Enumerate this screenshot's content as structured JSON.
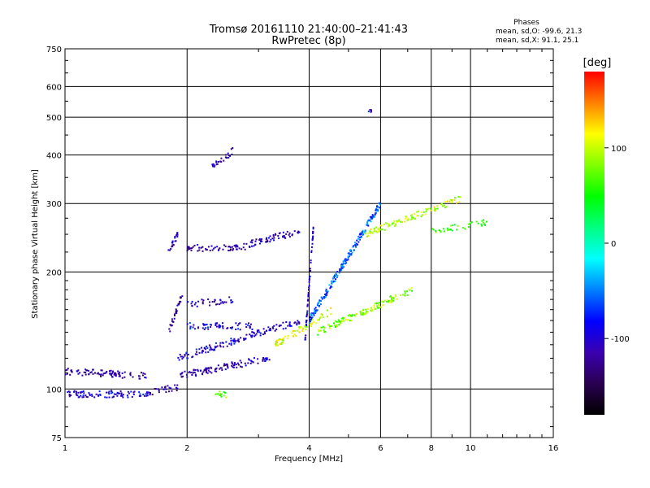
{
  "header": {
    "title_line1": "Tromsø 20161110 21:40:00–21:41:43",
    "title_line2": "RwPretec (8p)"
  },
  "legend_block": {
    "heading": "Phases",
    "line_o": "mean, sd,O: -99.6, 21.3",
    "line_x": "mean, sd,X:  91.1, 25.1"
  },
  "colorbar": {
    "unit": "[deg]",
    "tick_labels": [
      "100",
      "0",
      "-100"
    ],
    "tick_values": [
      100,
      0,
      -100
    ],
    "range": [
      -180,
      180
    ],
    "colormap": [
      "#000000",
      "#2a0050",
      "#3a00b0",
      "#0000ff",
      "#0080ff",
      "#00ffff",
      "#00ff80",
      "#00ff00",
      "#80ff00",
      "#ffff00",
      "#ff8000",
      "#ff0000"
    ]
  },
  "chart_data": {
    "type": "scatter",
    "title": "Tromsø 20161110 21:40:00–21:41:43",
    "subtitle": "RwPretec (8p)",
    "xlabel": "Frequency [MHz]",
    "ylabel": "Stationary phase Virtual Height [km]",
    "xscale": "log",
    "yscale": "log",
    "xlim": [
      1,
      16
    ],
    "ylim": [
      75,
      750
    ],
    "xticks": [
      1,
      2,
      4,
      6,
      8,
      10,
      16
    ],
    "xtick_labels": [
      "1",
      "2",
      "4",
      "6",
      "8",
      "10",
      "16"
    ],
    "yticks": [
      75,
      100,
      200,
      300,
      400,
      500,
      600,
      750
    ],
    "ytick_labels": [
      "75",
      "100",
      "200",
      "300",
      "400",
      "500",
      "600",
      "750"
    ],
    "grid": true,
    "color_value": "Phase [deg]",
    "traces": [
      {
        "x_range": [
          1.0,
          1.6
        ],
        "h_start": 97,
        "h_end": 97,
        "phase": -100,
        "n": 90
      },
      {
        "x_range": [
          1.6,
          1.9
        ],
        "h_start": 98,
        "h_end": 101,
        "phase": -120,
        "n": 30
      },
      {
        "x_range": [
          1.0,
          1.6
        ],
        "h_start": 111,
        "h_end": 108,
        "phase": -120,
        "n": 90
      },
      {
        "x_range": [
          1.9,
          3.2
        ],
        "h_start": 108,
        "h_end": 120,
        "phase": -110,
        "n": 110
      },
      {
        "x_range": [
          1.9,
          3.8
        ],
        "h_start": 120,
        "h_end": 150,
        "phase": -100,
        "n": 140
      },
      {
        "x_range": [
          3.3,
          4.6
        ],
        "h_start": 130,
        "h_end": 160,
        "phase": 100,
        "n": 70
      },
      {
        "x_range": [
          4.2,
          7.2
        ],
        "h_start": 140,
        "h_end": 180,
        "phase": 80,
        "n": 130
      },
      {
        "x_range": [
          1.8,
          1.9
        ],
        "h_start": 225,
        "h_end": 250,
        "phase": -110,
        "n": 20
      },
      {
        "x_range": [
          1.8,
          1.95
        ],
        "h_start": 140,
        "h_end": 175,
        "phase": -120,
        "n": 30
      },
      {
        "x_range": [
          2.0,
          2.8
        ],
        "h_start": 230,
        "h_end": 232,
        "phase": -120,
        "n": 60
      },
      {
        "x_range": [
          2.8,
          3.8
        ],
        "h_start": 235,
        "h_end": 255,
        "phase": -110,
        "n": 60
      },
      {
        "x_range": [
          2.0,
          2.9
        ],
        "h_start": 145,
        "h_end": 145,
        "phase": -90,
        "n": 60
      },
      {
        "x_range": [
          2.0,
          2.6
        ],
        "h_start": 165,
        "h_end": 170,
        "phase": -110,
        "n": 35
      },
      {
        "x_range": [
          3.9,
          4.1
        ],
        "h_start": 130,
        "h_end": 260,
        "phase": -100,
        "n": 60
      },
      {
        "x_range": [
          4.0,
          6.0
        ],
        "h_start": 150,
        "h_end": 300,
        "phase": -60,
        "n": 220
      },
      {
        "x_range": [
          5.5,
          9.5
        ],
        "h_start": 250,
        "h_end": 310,
        "phase": 100,
        "n": 110
      },
      {
        "x_range": [
          8.0,
          11.5
        ],
        "h_start": 255,
        "h_end": 270,
        "phase": 60,
        "n": 40
      },
      {
        "x_range": [
          2.3,
          2.6
        ],
        "h_start": 370,
        "h_end": 410,
        "phase": -110,
        "n": 25
      },
      {
        "x_range": [
          2.35,
          2.5
        ],
        "h_start": 97,
        "h_end": 97,
        "phase": 70,
        "n": 15
      },
      {
        "x_range": [
          5.6,
          5.7
        ],
        "h_start": 510,
        "h_end": 520,
        "phase": -100,
        "n": 5
      }
    ]
  }
}
